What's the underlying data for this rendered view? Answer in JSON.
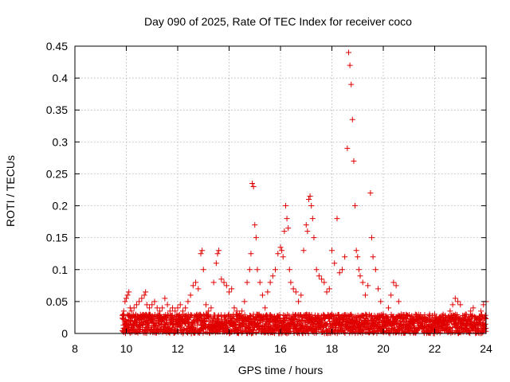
{
  "chart_data": {
    "type": "scatter",
    "title": "Day 090 of 2025, Rate Of TEC Index for receiver coco",
    "xlabel": "GPS time / hours",
    "ylabel": "ROTI / TECUs",
    "xlim": [
      8,
      24
    ],
    "ylim": [
      0,
      0.45
    ],
    "xticks": [
      8,
      10,
      12,
      14,
      16,
      18,
      20,
      22,
      24
    ],
    "yticks": [
      0,
      0.05,
      0.1,
      0.15,
      0.2,
      0.25,
      0.3,
      0.35,
      0.4,
      0.45
    ],
    "xtick_labels": [
      "8",
      "10",
      "12",
      "14",
      "16",
      "18",
      "20",
      "22",
      "24"
    ],
    "ytick_labels": [
      "0",
      "0.05",
      "0.1",
      "0.15",
      "0.2",
      "0.25",
      "0.3",
      "0.35",
      "0.4",
      "0.45"
    ],
    "grid": true,
    "marker": "+",
    "marker_color": "#e00000",
    "series": [
      {
        "name": "ROTI",
        "x": [
          9.9,
          9.95,
          10.0,
          10.05,
          10.1,
          10.15,
          10.2,
          10.3,
          10.4,
          10.5,
          10.6,
          10.7,
          10.75,
          10.8,
          10.9,
          11.0,
          11.1,
          11.2,
          11.3,
          11.4,
          11.5,
          11.6,
          11.7,
          11.8,
          11.9,
          12.0,
          12.1,
          12.2,
          12.3,
          12.4,
          12.5,
          12.6,
          12.7,
          12.8,
          12.9,
          12.95,
          13.0,
          13.1,
          13.2,
          13.3,
          13.4,
          13.5,
          13.55,
          13.6,
          13.7,
          13.8,
          13.9,
          14.0,
          14.1,
          14.2,
          14.3,
          14.4,
          14.5,
          14.6,
          14.7,
          14.8,
          14.85,
          14.9,
          14.95,
          15.0,
          15.05,
          15.1,
          15.2,
          15.3,
          15.4,
          15.5,
          15.6,
          15.7,
          15.8,
          15.9,
          16.0,
          16.05,
          16.1,
          16.15,
          16.2,
          16.25,
          16.3,
          16.35,
          16.4,
          16.5,
          16.6,
          16.7,
          16.8,
          16.9,
          17.0,
          17.05,
          17.1,
          17.15,
          17.2,
          17.25,
          17.3,
          17.4,
          17.5,
          17.6,
          17.7,
          17.8,
          17.9,
          18.0,
          18.1,
          18.2,
          18.3,
          18.4,
          18.5,
          18.6,
          18.65,
          18.7,
          18.75,
          18.8,
          18.85,
          18.9,
          18.95,
          19.0,
          19.05,
          19.1,
          19.2,
          19.3,
          19.4,
          19.5,
          19.55,
          19.6,
          19.7,
          19.8,
          19.9,
          20.0,
          20.1,
          20.2,
          20.3,
          20.4,
          20.5,
          20.6,
          20.7,
          20.8,
          20.9,
          21.0,
          21.2,
          21.4,
          21.6,
          21.8,
          22.0,
          22.2,
          22.4,
          22.6,
          22.7,
          22.8,
          22.9,
          23.0,
          23.2,
          23.4,
          23.5,
          23.6,
          23.8,
          23.9,
          24.0
        ],
        "y": [
          0.035,
          0.05,
          0.055,
          0.06,
          0.065,
          0.04,
          0.035,
          0.04,
          0.045,
          0.05,
          0.055,
          0.06,
          0.065,
          0.045,
          0.04,
          0.045,
          0.05,
          0.04,
          0.035,
          0.04,
          0.055,
          0.045,
          0.035,
          0.04,
          0.035,
          0.04,
          0.045,
          0.035,
          0.04,
          0.05,
          0.06,
          0.075,
          0.08,
          0.07,
          0.125,
          0.13,
          0.1,
          0.045,
          0.035,
          0.04,
          0.08,
          0.11,
          0.125,
          0.13,
          0.085,
          0.08,
          0.075,
          0.065,
          0.07,
          0.04,
          0.035,
          0.03,
          0.035,
          0.05,
          0.08,
          0.1,
          0.125,
          0.235,
          0.23,
          0.17,
          0.15,
          0.1,
          0.08,
          0.06,
          0.04,
          0.065,
          0.08,
          0.09,
          0.1,
          0.125,
          0.135,
          0.13,
          0.12,
          0.16,
          0.2,
          0.18,
          0.165,
          0.1,
          0.08,
          0.07,
          0.065,
          0.05,
          0.06,
          0.13,
          0.17,
          0.16,
          0.21,
          0.215,
          0.2,
          0.18,
          0.15,
          0.1,
          0.09,
          0.085,
          0.08,
          0.065,
          0.07,
          0.13,
          0.11,
          0.18,
          0.095,
          0.1,
          0.12,
          0.29,
          0.44,
          0.42,
          0.39,
          0.335,
          0.27,
          0.2,
          0.13,
          0.12,
          0.1,
          0.09,
          0.08,
          0.06,
          0.075,
          0.22,
          0.15,
          0.12,
          0.1,
          0.07,
          0.05,
          0.03,
          0.025,
          0.04,
          0.06,
          0.08,
          0.075,
          0.05,
          0.03,
          0.025,
          0.02,
          0.015,
          0.02,
          0.025,
          0.025,
          0.03,
          0.03,
          0.025,
          0.02,
          0.035,
          0.045,
          0.055,
          0.05,
          0.045,
          0.03,
          0.035,
          0.04,
          0.025,
          0.035,
          0.045,
          0.05
        ]
      }
    ]
  }
}
